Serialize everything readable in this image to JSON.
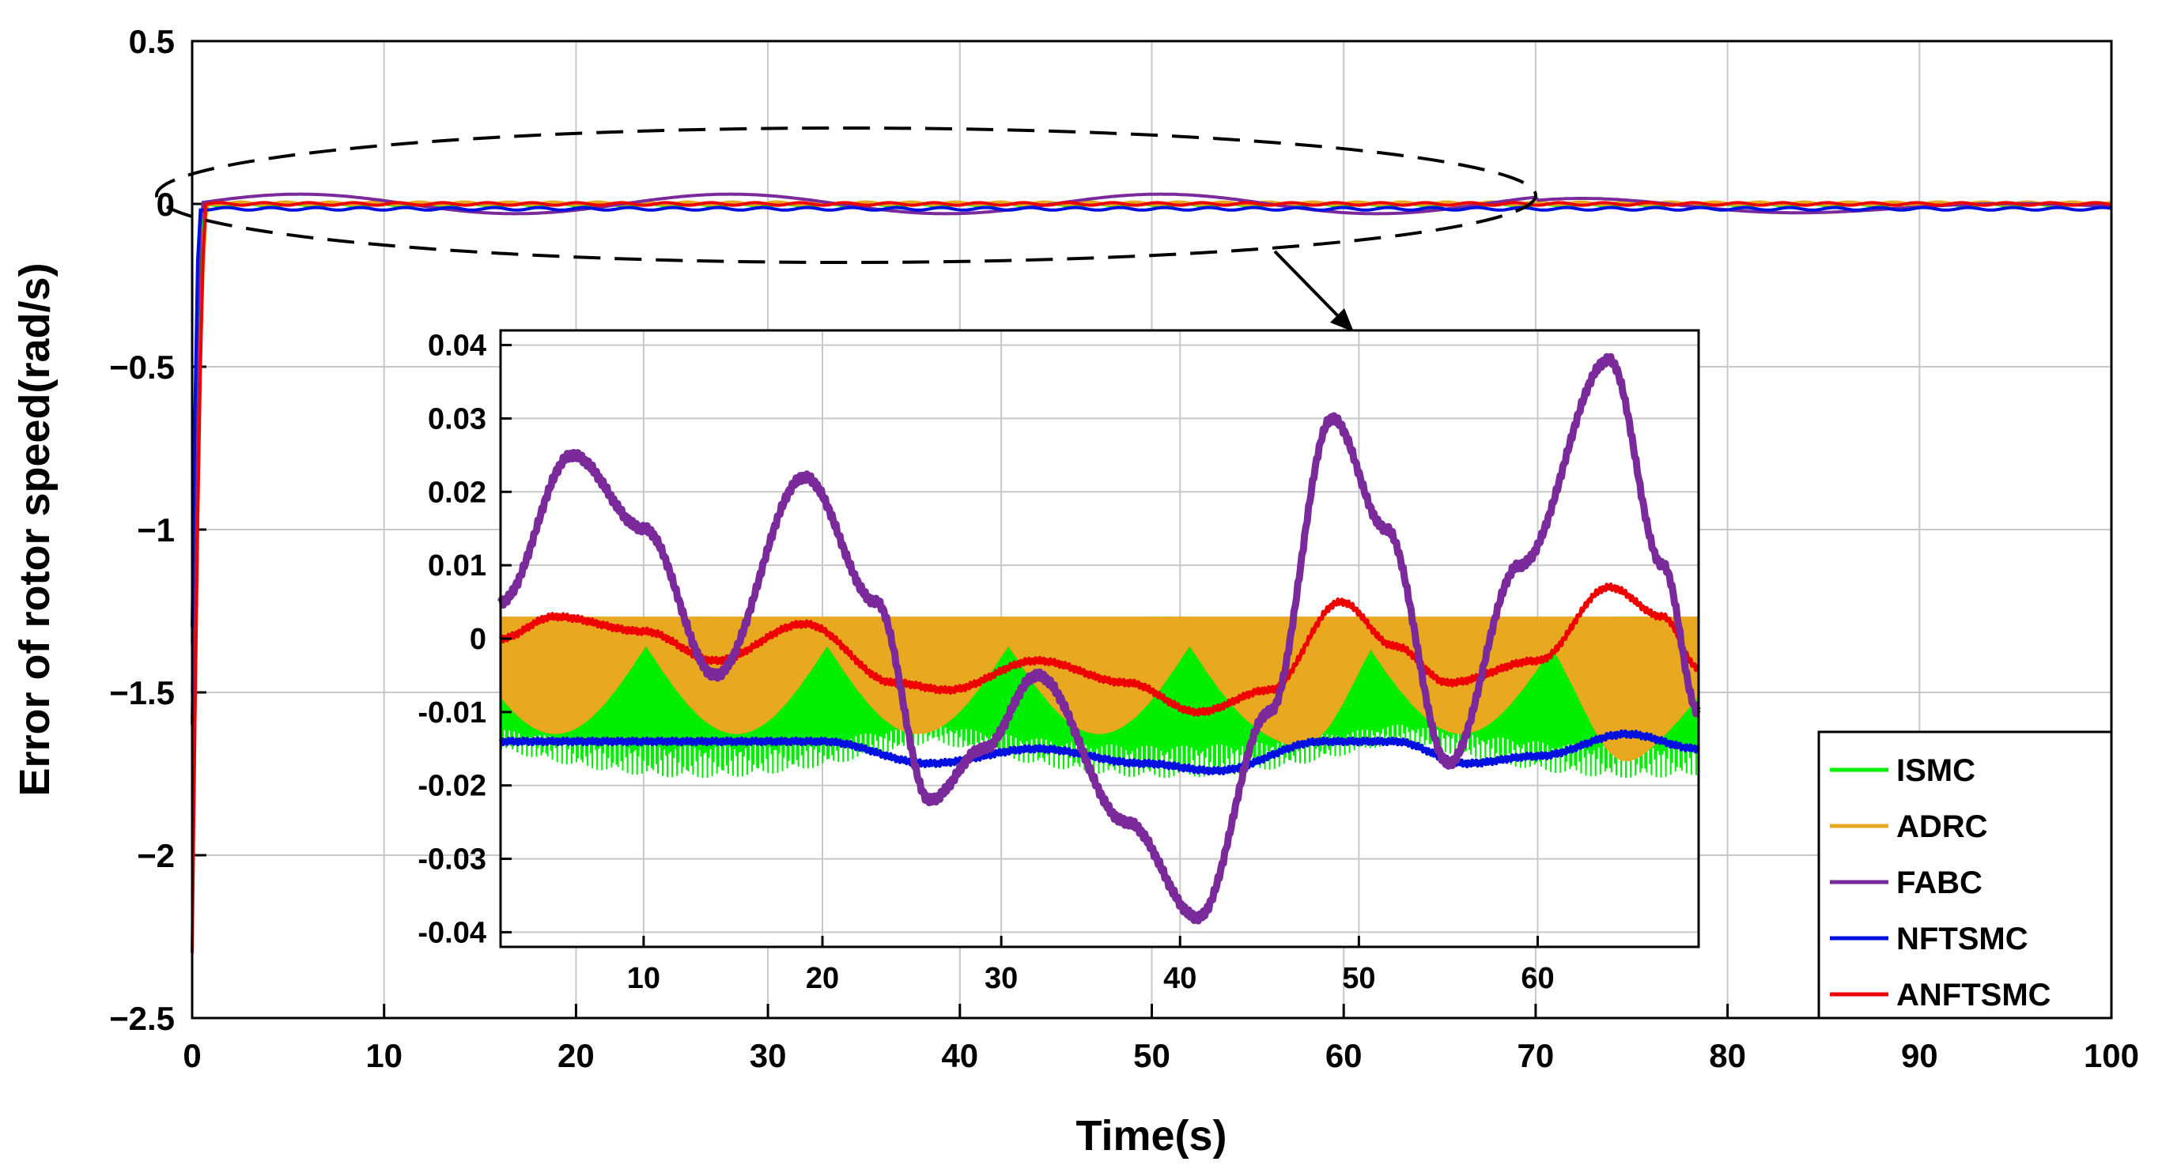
{
  "chart_data": [
    {
      "id": "main",
      "type": "line",
      "xlabel": "Time(s)",
      "ylabel": "Error of rotor speed(rad/s)",
      "xlim": [
        0,
        100
      ],
      "ylim": [
        -2.5,
        0.5
      ],
      "xticks": [
        0,
        10,
        20,
        30,
        40,
        50,
        60,
        70,
        80,
        90,
        100
      ],
      "xtick_labels": [
        "0",
        "10",
        "20",
        "30",
        "40",
        "50",
        "60",
        "70",
        "80",
        "90",
        "100"
      ],
      "yticks": [
        0.5,
        0,
        -0.5,
        -1,
        -1.5,
        -2,
        -2.5
      ],
      "ytick_labels": [
        "0.5",
        "0",
        "−0.5",
        "−1",
        "−1.5",
        "−2",
        "−2.5"
      ],
      "grid": true,
      "annotation": "dashed ellipse marking steady-state region 0-70 s, arrow to inset",
      "series": [
        {
          "name": "ISMC",
          "color": "#00ee00",
          "initial_error": -1.35,
          "settle_time": 0.6,
          "steady_band": [
            -0.02,
            0.004
          ]
        },
        {
          "name": "ADRC",
          "color": "#e8a820",
          "initial_error": -1.5,
          "settle_time": 0.8,
          "steady_band": [
            -0.018,
            0.003
          ]
        },
        {
          "name": "FABC",
          "color": "#7a2a9a",
          "initial_error": -1.6,
          "settle_time": 0.5,
          "steady_band": [
            -0.038,
            0.038
          ]
        },
        {
          "name": "NFTSMC",
          "color": "#0010e0",
          "initial_error": -1.3,
          "settle_time": 0.4,
          "steady_value": -0.015
        },
        {
          "name": "ANFTSMC",
          "color": "#ee0000",
          "initial_error": -2.3,
          "settle_time": 0.7,
          "steady_band": [
            -0.011,
            0.007
          ]
        }
      ]
    },
    {
      "id": "inset",
      "type": "line",
      "xlim": [
        2,
        69
      ],
      "ylim": [
        -0.042,
        0.042
      ],
      "xticks": [
        10,
        20,
        30,
        40,
        50,
        60
      ],
      "xtick_labels": [
        "10",
        "20",
        "30",
        "40",
        "50",
        "60"
      ],
      "yticks": [
        0.04,
        0.03,
        0.02,
        0.01,
        0,
        -0.01,
        -0.02,
        -0.03,
        -0.04
      ],
      "ytick_labels": [
        "0.04",
        "0.03",
        "0.02",
        "0.01",
        "0",
        "-0.01",
        "-0.02",
        "-0.03",
        "-0.04"
      ],
      "grid": true,
      "series": [
        {
          "name": "ADRC",
          "band_top": 0.003,
          "band_bottom": -0.013,
          "bottom_dips": [
            [
              48.5,
              -0.017
            ],
            [
              64,
              -0.018
            ]
          ]
        },
        {
          "name": "ISMC",
          "band_top": 0.003,
          "band_bottom": -0.019
        },
        {
          "name": "NFTSMC",
          "x": [
            2,
            10,
            20,
            26,
            32,
            38,
            42,
            48,
            52,
            56,
            60,
            65,
            69
          ],
          "y": [
            -0.014,
            -0.014,
            -0.014,
            -0.017,
            -0.015,
            -0.017,
            -0.018,
            -0.014,
            -0.014,
            -0.017,
            -0.016,
            -0.013,
            -0.015
          ]
        },
        {
          "name": "ANFTSMC",
          "x": [
            2,
            5,
            10,
            14,
            19,
            24,
            27,
            32,
            37,
            41,
            45,
            49,
            52,
            55,
            60,
            64,
            67,
            69
          ],
          "y": [
            0,
            0.003,
            0.001,
            -0.003,
            0.002,
            -0.006,
            -0.007,
            -0.003,
            -0.006,
            -0.01,
            -0.007,
            0.005,
            -0.001,
            -0.006,
            -0.003,
            0.007,
            0.003,
            -0.004
          ]
        },
        {
          "name": "FABC",
          "x": [
            2,
            6,
            10,
            14,
            19,
            23,
            26,
            29,
            32,
            37,
            41,
            45,
            48.5,
            51.5,
            55,
            59,
            64,
            67,
            69
          ],
          "y": [
            0.005,
            0.025,
            0.015,
            -0.005,
            0.022,
            0.005,
            -0.022,
            -0.015,
            -0.005,
            -0.025,
            -0.038,
            -0.01,
            0.03,
            0.015,
            -0.017,
            0.01,
            0.038,
            0.01,
            -0.01
          ]
        }
      ]
    }
  ],
  "legend": {
    "position": "bottom-right",
    "entries": [
      {
        "label": "ISMC",
        "color": "#00ee00"
      },
      {
        "label": "ADRC",
        "color": "#e8a820"
      },
      {
        "label": "FABC",
        "color": "#7a2a9a"
      },
      {
        "label": "NFTSMC",
        "color": "#0010e0"
      },
      {
        "label": "ANFTSMC",
        "color": "#ee0000"
      }
    ]
  }
}
